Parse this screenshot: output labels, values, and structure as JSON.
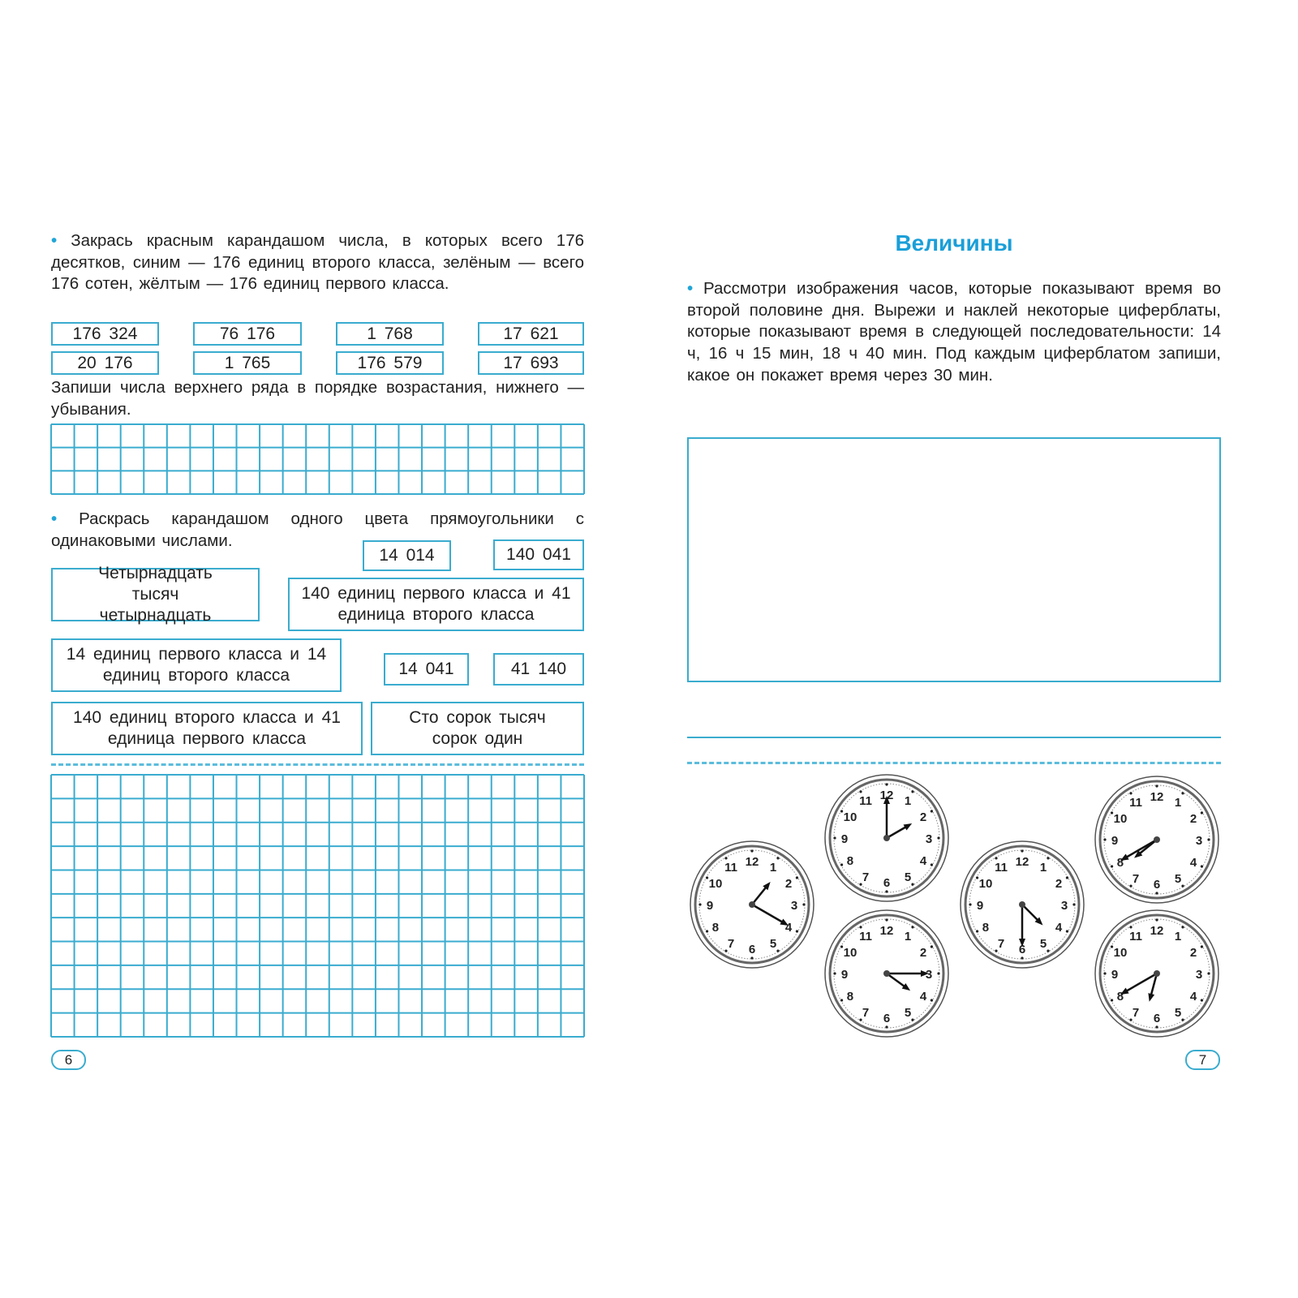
{
  "left_page": {
    "task1": {
      "text": "Закрась красным карандашом числа, в которых всего 176 десятков, синим — 176 единиц второго класса, зелёным — всего 176 сотен, жёлтым — 176 единиц первого класса.",
      "numbers_row1": [
        "176 324",
        "76 176",
        "1 768",
        "17 621"
      ],
      "numbers_row2": [
        "20 176",
        "1 765",
        "176 579",
        "17 693"
      ],
      "followup": "Запиши числа верхнего ряда в порядке возрастания, нижнего — убывания."
    },
    "task2": {
      "text": "Раскрась карандашом одного цвета прямоугольники с одинаковыми числами.",
      "boxes": [
        "14 014",
        "140 041",
        "Четырнадцать тысяч четырнадцать",
        "140 единиц первого класса и 41 единица второго класса",
        "14 единиц первого класса и 14 единиц второго класса",
        "14 041",
        "41 140",
        "140 единиц второго класса и 41 единица первого класса",
        "Сто сорок тысяч сорок один"
      ]
    },
    "page_number": "6"
  },
  "right_page": {
    "title": "Величины",
    "task": "Рассмотри изображения часов, которые показывают время во второй половине дня. Вырежи и наклей некоторые циферблаты, которые показывают время в следующей последовательности: 14 ч, 16 ч 15 мин, 18 ч 40 мин. Под каждым циферблатом запиши, какое он покажет время через 30 мин.",
    "clock_numerals": [
      "12",
      "1",
      "2",
      "3",
      "4",
      "5",
      "6",
      "7",
      "8",
      "9",
      "10",
      "11"
    ],
    "clocks": [
      {
        "hour_hand": 1.3,
        "minute_hand": 4
      },
      {
        "hour_hand": 2,
        "minute_hand": 12
      },
      {
        "hour_hand": 4.2,
        "minute_hand": 3
      },
      {
        "hour_hand": 4.5,
        "minute_hand": 6
      },
      {
        "hour_hand": 7.7,
        "minute_hand": 8
      },
      {
        "hour_hand": 6.5,
        "minute_hand": 8
      }
    ],
    "page_number": "7"
  },
  "colors": {
    "accent": "#3aaccf",
    "title": "#1a9fd8"
  }
}
